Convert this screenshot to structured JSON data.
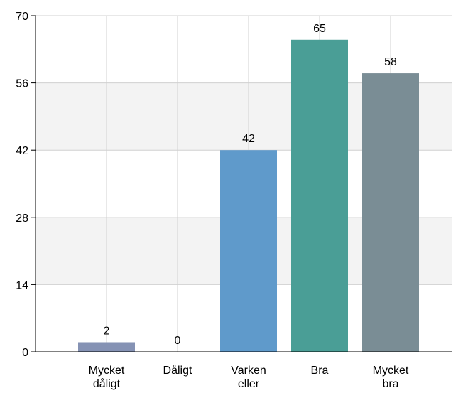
{
  "chart_data": {
    "type": "bar",
    "categories": [
      [
        "Mycket",
        "dåligt"
      ],
      [
        "Dåligt"
      ],
      [
        "Varken",
        "eller"
      ],
      [
        "Bra"
      ],
      [
        "Mycket",
        "bra"
      ]
    ],
    "values": [
      2,
      0,
      42,
      65,
      58
    ],
    "data_labels": [
      "2",
      "0",
      "42",
      "65",
      "58"
    ],
    "colors": [
      "#8592b4",
      "#8592b4",
      "#5f9acb",
      "#4a9e96",
      "#7a8d95"
    ],
    "yticks": [
      0,
      14,
      28,
      42,
      56,
      70
    ],
    "ylim": [
      0,
      70
    ],
    "title": "",
    "xlabel": "",
    "ylabel": "",
    "grid": true,
    "band_color": "#f3f3f3",
    "grid_color": "#d0d0d0"
  }
}
